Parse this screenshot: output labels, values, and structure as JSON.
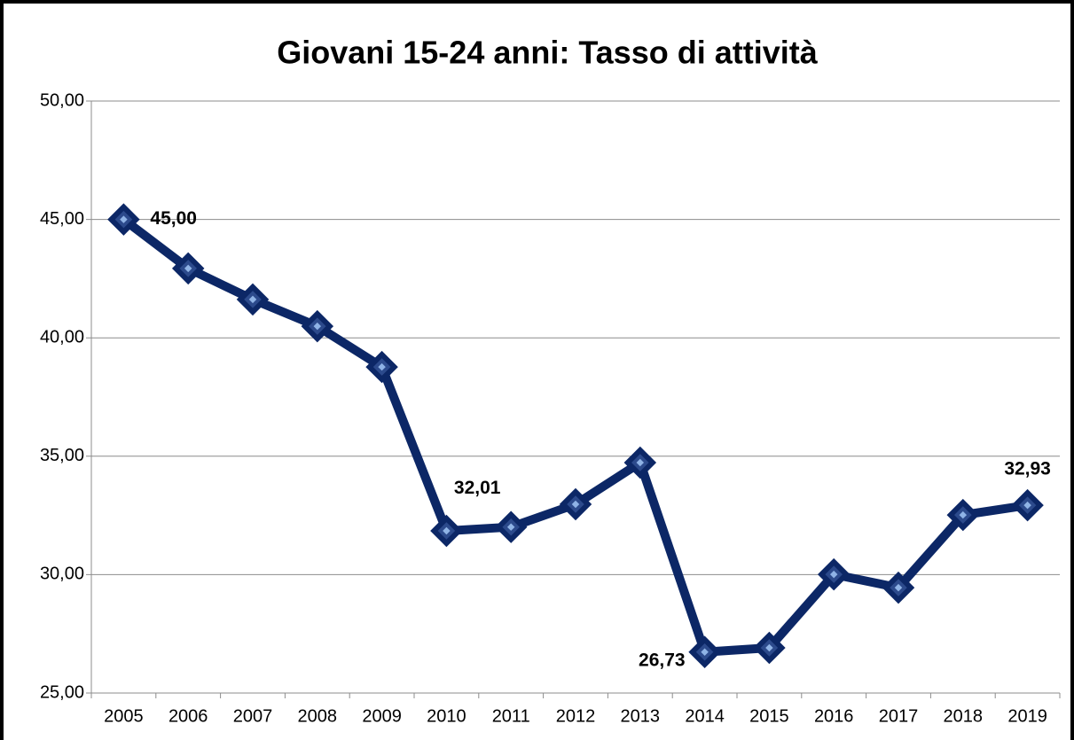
{
  "chart_data": {
    "type": "line",
    "title": "Giovani 15-24 anni: Tasso di attività",
    "categories": [
      "2005",
      "2006",
      "2007",
      "2008",
      "2009",
      "2010",
      "2011",
      "2012",
      "2013",
      "2014",
      "2015",
      "2016",
      "2017",
      "2018",
      "2019"
    ],
    "values": [
      45.0,
      42.93,
      41.62,
      40.49,
      38.77,
      31.85,
      32.01,
      32.97,
      34.73,
      26.73,
      26.91,
      30.01,
      29.45,
      32.52,
      32.93
    ],
    "value_labels": [
      "45,00",
      null,
      null,
      null,
      null,
      null,
      "32,01",
      null,
      null,
      "26,73",
      null,
      null,
      null,
      null,
      "32,93"
    ],
    "color": "#0c2766",
    "ylim": [
      25,
      50
    ],
    "yticks": [
      {
        "value": 25,
        "label": "25,00"
      },
      {
        "value": 30,
        "label": "30,00"
      },
      {
        "value": 35,
        "label": "35,00"
      },
      {
        "value": 40,
        "label": "40,00"
      },
      {
        "value": 45,
        "label": "45,00"
      },
      {
        "value": 50,
        "label": "50,00"
      }
    ],
    "grid": true
  }
}
